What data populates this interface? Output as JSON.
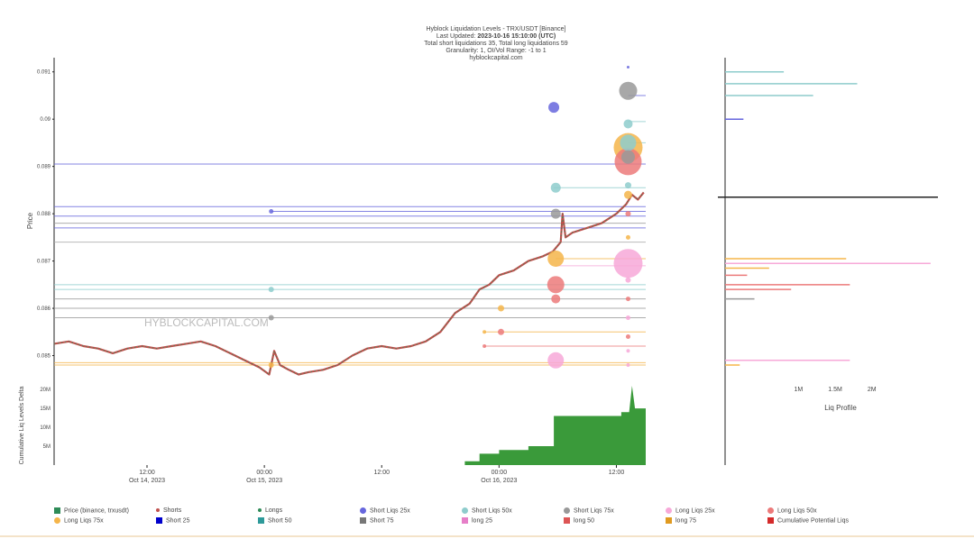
{
  "header": {
    "line1": "Hyblock Liquidation Levels - TRX/USDT [Binance]",
    "line2_label": "Last Updated:",
    "line2_value": "2023-10-16 15:10:00 (UTC)",
    "line3": "Total short liquidations 35, Total long liquidations 59",
    "line4": "Granularity: 1, OI/Vol Range: -1 to 1",
    "line5": "hyblockcapital.com"
  },
  "watermark": "HYBLOCKCAPITAL.COM",
  "colors": {
    "price_up": "#2e8b57",
    "price_down": "#c0504d",
    "short25": "#6666dd",
    "short50": "#8ecccc",
    "short75": "#999999",
    "long25": "#f7a8d8",
    "long50": "#ec7a7a",
    "long75": "#f5b54a",
    "cumulative": "#3a9a3a"
  },
  "chart_data": {
    "type": "scatter",
    "title": "Hyblock Liquidation Levels - TRX/USDT [Binance]",
    "ylabel": "Price",
    "y_ticks": [
      "0.085",
      "0.086",
      "0.087",
      "0.088",
      "0.089",
      "0.09",
      "0.091"
    ],
    "ylim": [
      0.0844,
      0.0913
    ],
    "x_ticks": [
      {
        "t": 12,
        "line1": "12:00",
        "line2": "Oct 14, 2023"
      },
      {
        "t": 24,
        "line1": "00:00",
        "line2": "Oct 15, 2023"
      },
      {
        "t": 36,
        "line1": "12:00",
        "line2": ""
      },
      {
        "t": 48,
        "line1": "00:00",
        "line2": "Oct 16, 2023"
      },
      {
        "t": 60,
        "line1": "12:00",
        "line2": ""
      }
    ],
    "xlim": [
      2.5,
      63.0
    ],
    "price_series": [
      [
        2.5,
        0.08525
      ],
      [
        4,
        0.0853
      ],
      [
        5.5,
        0.0852
      ],
      [
        7,
        0.08515
      ],
      [
        8.5,
        0.08505
      ],
      [
        10,
        0.08515
      ],
      [
        11.5,
        0.0852
      ],
      [
        13,
        0.08515
      ],
      [
        14.5,
        0.0852
      ],
      [
        16,
        0.08525
      ],
      [
        17.5,
        0.0853
      ],
      [
        19,
        0.0852
      ],
      [
        20.5,
        0.08505
      ],
      [
        22,
        0.0849
      ],
      [
        23.5,
        0.08475
      ],
      [
        24.5,
        0.0846
      ],
      [
        25,
        0.0851
      ],
      [
        25.6,
        0.0848
      ],
      [
        26.5,
        0.0847
      ],
      [
        27.5,
        0.0846
      ],
      [
        28.5,
        0.08465
      ],
      [
        30,
        0.0847
      ],
      [
        31.5,
        0.0848
      ],
      [
        33,
        0.085
      ],
      [
        34.5,
        0.08515
      ],
      [
        36,
        0.0852
      ],
      [
        37.5,
        0.08515
      ],
      [
        39,
        0.0852
      ],
      [
        40.5,
        0.0853
      ],
      [
        42,
        0.0855
      ],
      [
        43.5,
        0.0859
      ],
      [
        45,
        0.0861
      ],
      [
        46,
        0.0864
      ],
      [
        47,
        0.0865
      ],
      [
        48,
        0.0867
      ],
      [
        49.5,
        0.0868
      ],
      [
        51,
        0.087
      ],
      [
        52.5,
        0.0871
      ],
      [
        53.5,
        0.0872
      ],
      [
        54.3,
        0.0874
      ],
      [
        54.5,
        0.088
      ],
      [
        54.8,
        0.0875
      ],
      [
        55.5,
        0.0876
      ],
      [
        57,
        0.0877
      ],
      [
        58.5,
        0.0878
      ],
      [
        60,
        0.088
      ],
      [
        61,
        0.0882
      ],
      [
        61.6,
        0.0884
      ],
      [
        62.2,
        0.0883
      ],
      [
        62.8,
        0.08845
      ]
    ],
    "short_liqs": [
      {
        "t": 24.7,
        "price": 0.08805,
        "lev": "25x",
        "size": 5
      },
      {
        "t": 53.6,
        "price": 0.09025,
        "lev": "25x",
        "size": 12
      },
      {
        "t": 61.2,
        "price": 0.0911,
        "lev": "25x",
        "size": 3
      },
      {
        "t": 61.2,
        "price": 0.0895,
        "lev": "50x",
        "size": 18
      },
      {
        "t": 61.2,
        "price": 0.0892,
        "lev": "75x",
        "size": 15
      },
      {
        "t": 61.2,
        "price": 0.0906,
        "lev": "75x",
        "size": 20
      },
      {
        "t": 61.2,
        "price": 0.0899,
        "lev": "50x",
        "size": 10
      },
      {
        "t": 61.2,
        "price": 0.0886,
        "lev": "50x",
        "size": 7
      },
      {
        "t": 53.8,
        "price": 0.08855,
        "lev": "50x",
        "size": 11
      },
      {
        "t": 24.7,
        "price": 0.0864,
        "lev": "50x",
        "size": 6
      },
      {
        "t": 53.8,
        "price": 0.088,
        "lev": "75x",
        "size": 11
      },
      {
        "t": 24.7,
        "price": 0.0858,
        "lev": "75x",
        "size": 6
      }
    ],
    "long_liqs": [
      {
        "t": 61.2,
        "price": 0.0894,
        "lev": "75x",
        "size": 32
      },
      {
        "t": 61.2,
        "price": 0.0891,
        "lev": "50x",
        "size": 30
      },
      {
        "t": 61.2,
        "price": 0.08695,
        "lev": "25x",
        "size": 32
      },
      {
        "t": 53.8,
        "price": 0.08705,
        "lev": "75x",
        "size": 18
      },
      {
        "t": 53.8,
        "price": 0.0865,
        "lev": "50x",
        "size": 19
      },
      {
        "t": 53.8,
        "price": 0.0862,
        "lev": "50x",
        "size": 10
      },
      {
        "t": 53.8,
        "price": 0.0849,
        "lev": "25x",
        "size": 18
      },
      {
        "t": 48.2,
        "price": 0.086,
        "lev": "75x",
        "size": 7
      },
      {
        "t": 48.2,
        "price": 0.0855,
        "lev": "50x",
        "size": 7
      },
      {
        "t": 46.5,
        "price": 0.0855,
        "lev": "75x",
        "size": 4
      },
      {
        "t": 46.5,
        "price": 0.0852,
        "lev": "50x",
        "size": 4
      },
      {
        "t": 24.7,
        "price": 0.0848,
        "lev": "75x",
        "size": 6
      },
      {
        "t": 61.2,
        "price": 0.0884,
        "lev": "75x",
        "size": 9
      },
      {
        "t": 61.2,
        "price": 0.088,
        "lev": "50x",
        "size": 6
      },
      {
        "t": 61.2,
        "price": 0.0875,
        "lev": "75x",
        "size": 5
      },
      {
        "t": 61.2,
        "price": 0.0866,
        "lev": "25x",
        "size": 6
      },
      {
        "t": 61.2,
        "price": 0.0862,
        "lev": "50x",
        "size": 5
      },
      {
        "t": 61.2,
        "price": 0.0858,
        "lev": "25x",
        "size": 5
      },
      {
        "t": 61.2,
        "price": 0.0854,
        "lev": "50x",
        "size": 5
      },
      {
        "t": 61.2,
        "price": 0.0851,
        "lev": "25x",
        "size": 4
      },
      {
        "t": 61.2,
        "price": 0.0848,
        "lev": "25x",
        "size": 4
      }
    ],
    "level_lines": [
      {
        "price": 0.0905,
        "start": 61.2,
        "color": "#6666dd"
      },
      {
        "price": 0.08995,
        "start": 61.2,
        "color": "#8ecccc"
      },
      {
        "price": 0.0895,
        "start": 61.2,
        "color": "#8ecccc"
      },
      {
        "price": 0.08905,
        "start": 2.5,
        "color": "#6666dd"
      },
      {
        "price": 0.08855,
        "start": 53.6,
        "color": "#8ecccc"
      },
      {
        "price": 0.08815,
        "start": 2.5,
        "color": "#6666dd"
      },
      {
        "price": 0.08805,
        "start": 24.7,
        "color": "#6666dd"
      },
      {
        "price": 0.08795,
        "start": 2.5,
        "color": "#6666dd"
      },
      {
        "price": 0.0878,
        "start": 2.5,
        "color": "#999999"
      },
      {
        "price": 0.0877,
        "start": 2.5,
        "color": "#6666dd"
      },
      {
        "price": 0.0874,
        "start": 2.5,
        "color": "#aaaaaa"
      },
      {
        "price": 0.08705,
        "start": 53.8,
        "color": "#f5b54a"
      },
      {
        "price": 0.0869,
        "start": 53.8,
        "color": "#f7a8d8"
      },
      {
        "price": 0.0865,
        "start": 2.5,
        "color": "#8ecccc"
      },
      {
        "price": 0.0864,
        "start": 2.5,
        "color": "#8ecccc"
      },
      {
        "price": 0.0862,
        "start": 2.5,
        "color": "#999999"
      },
      {
        "price": 0.086,
        "start": 2.5,
        "color": "#999999"
      },
      {
        "price": 0.0858,
        "start": 2.5,
        "color": "#999999"
      },
      {
        "price": 0.0855,
        "start": 46.5,
        "color": "#f5b54a"
      },
      {
        "price": 0.0852,
        "start": 46.5,
        "color": "#ec7a7a"
      },
      {
        "price": 0.08485,
        "start": 2.5,
        "color": "#f5b54a"
      },
      {
        "price": 0.0848,
        "start": 2.5,
        "color": "#f5b54a"
      }
    ],
    "cumulative": {
      "ylabel": "Cumulative Liq Levels Delta",
      "y_ticks": [
        "5M",
        "10M",
        "15M",
        "20M"
      ],
      "ylim": [
        0,
        21
      ],
      "steps": [
        [
          2.5,
          0
        ],
        [
          44.5,
          0
        ],
        [
          44.5,
          1
        ],
        [
          46,
          1
        ],
        [
          46,
          3
        ],
        [
          48,
          3
        ],
        [
          48,
          4
        ],
        [
          51,
          4
        ],
        [
          51,
          5
        ],
        [
          53.6,
          5
        ],
        [
          53.6,
          13
        ],
        [
          60.5,
          13
        ],
        [
          60.5,
          14
        ],
        [
          61.3,
          14
        ],
        [
          61.6,
          21
        ],
        [
          61.9,
          15
        ],
        [
          63,
          15
        ]
      ]
    },
    "liq_profile": {
      "xlabel": "Liq Profile",
      "x_ticks": [
        "1M",
        "1.5M",
        "2M"
      ],
      "x_tick_values": [
        1.0,
        1.5,
        2.0
      ],
      "xlim": [
        0,
        2.9
      ],
      "current_price": 0.08835,
      "bars": [
        {
          "price": 0.091,
          "value": 0.8,
          "color": "#8ecccc"
        },
        {
          "price": 0.09075,
          "value": 1.8,
          "color": "#8ecccc"
        },
        {
          "price": 0.0905,
          "value": 1.2,
          "color": "#8ecccc"
        },
        {
          "price": 0.09,
          "value": 0.25,
          "color": "#6666dd"
        },
        {
          "price": 0.08705,
          "value": 1.65,
          "color": "#f5b54a"
        },
        {
          "price": 0.08695,
          "value": 2.8,
          "color": "#f7a8d8"
        },
        {
          "price": 0.08685,
          "value": 0.6,
          "color": "#f5b54a"
        },
        {
          "price": 0.0867,
          "value": 0.3,
          "color": "#ec7a7a"
        },
        {
          "price": 0.0865,
          "value": 1.7,
          "color": "#ec7a7a"
        },
        {
          "price": 0.0864,
          "value": 0.9,
          "color": "#ec7a7a"
        },
        {
          "price": 0.0862,
          "value": 0.4,
          "color": "#999999"
        },
        {
          "price": 0.0849,
          "value": 1.7,
          "color": "#f7a8d8"
        },
        {
          "price": 0.0848,
          "value": 0.2,
          "color": "#f5b54a"
        }
      ]
    },
    "legend": [
      {
        "label": "Price (binance, trxusdt)",
        "color": "#2e8b57",
        "shape": "candle"
      },
      {
        "label": "Shorts",
        "color": "#c0504d",
        "shape": "dot-small"
      },
      {
        "label": "Longs",
        "color": "#2e8b57",
        "shape": "dot-small"
      },
      {
        "label": "Short Liqs 25x",
        "color": "#6666dd",
        "shape": "dot"
      },
      {
        "label": "Short Liqs 50x",
        "color": "#8ecccc",
        "shape": "dot"
      },
      {
        "label": "Short Liqs 75x",
        "color": "#999999",
        "shape": "dot"
      },
      {
        "label": "Long Liqs 25x",
        "color": "#f7a8d8",
        "shape": "dot"
      },
      {
        "label": "Long Liqs 50x",
        "color": "#ec7a7a",
        "shape": "dot"
      },
      {
        "label": "Long Liqs 75x",
        "color": "#f5b54a",
        "shape": "dot"
      },
      {
        "label": "Short 25",
        "color": "#0000cc",
        "shape": "square"
      },
      {
        "label": "Short 50",
        "color": "#2e9a9a",
        "shape": "square"
      },
      {
        "label": "Short 75",
        "color": "#777777",
        "shape": "square"
      },
      {
        "label": "long 25",
        "color": "#e67fc8",
        "shape": "square"
      },
      {
        "label": "long 50",
        "color": "#dd5555",
        "shape": "square"
      },
      {
        "label": "long 75",
        "color": "#e09a20",
        "shape": "square"
      },
      {
        "label": "Cumulative Potential Liqs",
        "color": "#d42a2a",
        "shape": "square"
      }
    ]
  }
}
